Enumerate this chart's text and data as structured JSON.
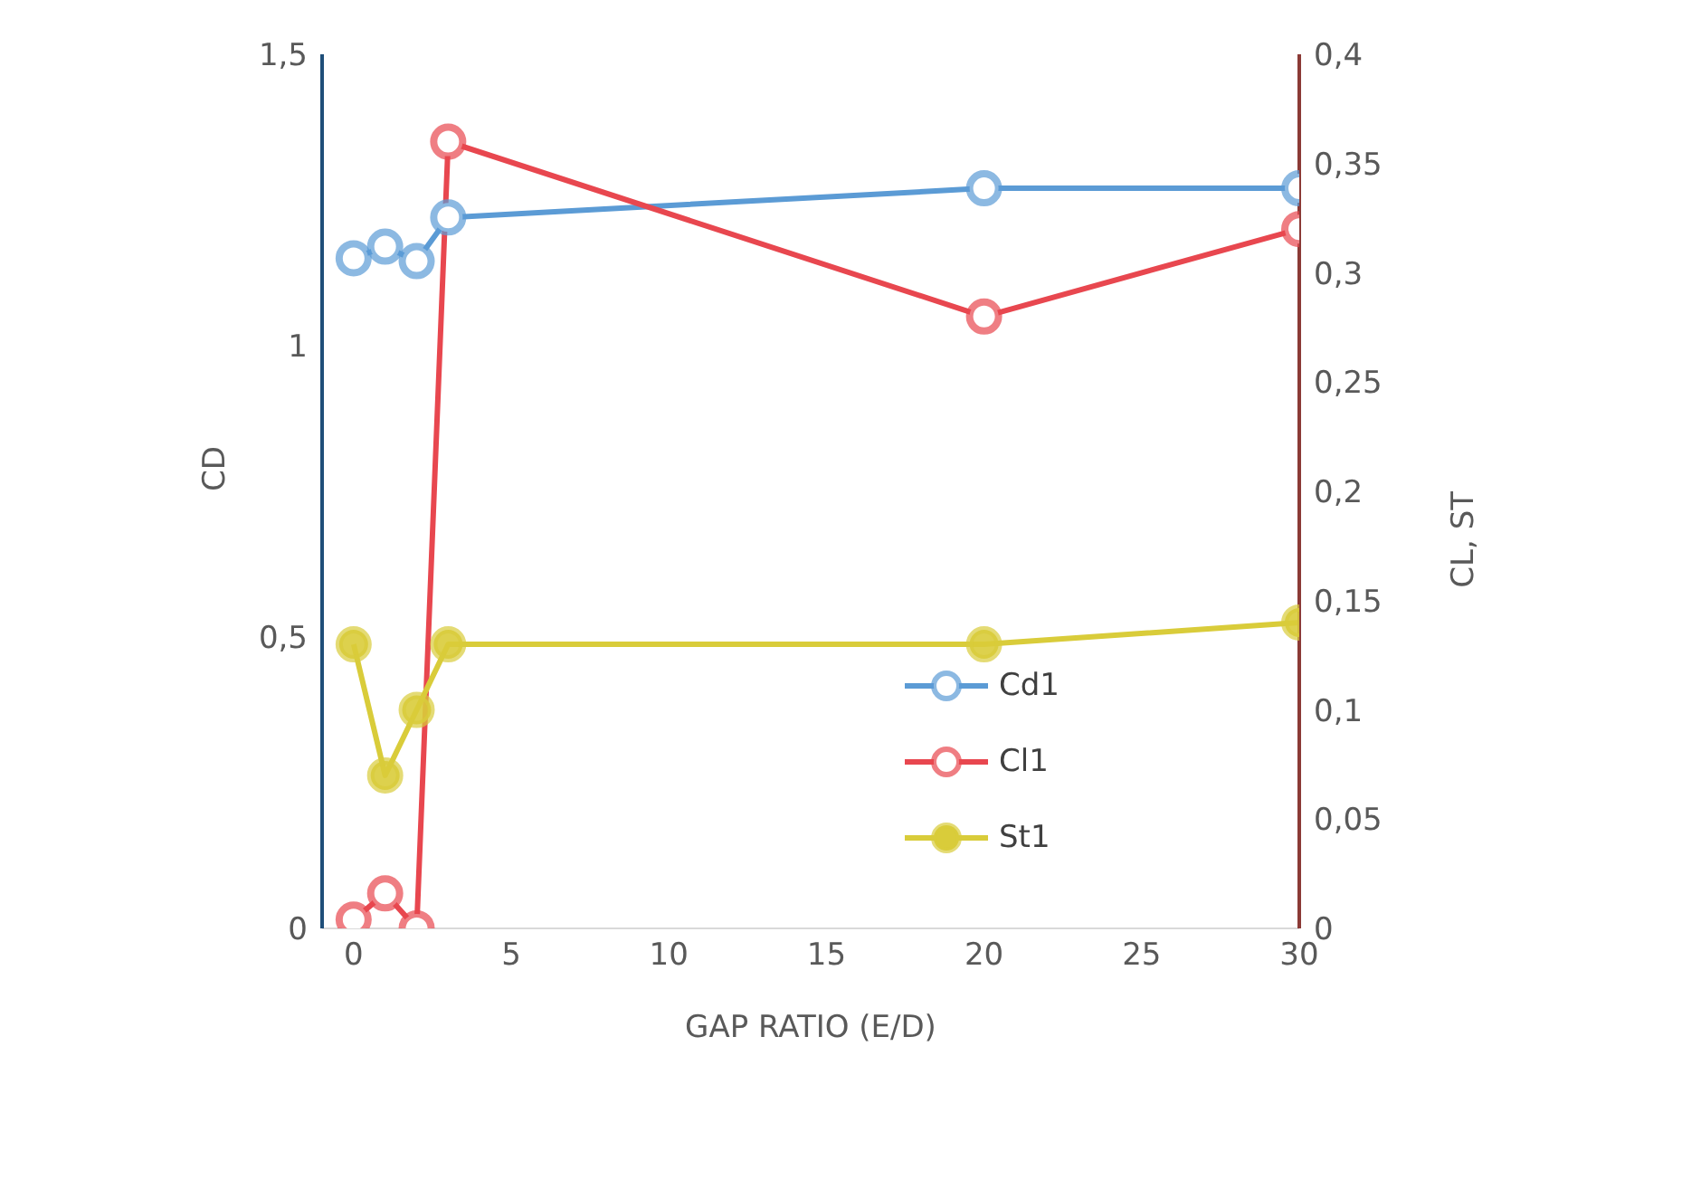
{
  "chart_data": {
    "type": "line",
    "xlabel": "GAP RATIO (E/D)",
    "ylabel": "CD",
    "y2label": "CL, ST",
    "x": [
      0,
      1,
      2,
      3,
      20,
      30
    ],
    "series": [
      {
        "name": "Cd1",
        "color": "#5b9bd5",
        "values": [
          1.15,
          1.17,
          1.145,
          1.22,
          1.27,
          1.27
        ]
      },
      {
        "name": "Cl1",
        "color": "#e8474f",
        "axis": "y2",
        "values": [
          0.004,
          0.016,
          0,
          0.36,
          0.28,
          0.32
        ]
      },
      {
        "name": "St1",
        "color": "#d9cc3a",
        "axis": "y2",
        "values": [
          0.13,
          0.07,
          0.1,
          0.13,
          0.13,
          0.14
        ]
      }
    ],
    "xlim": [
      -1,
      30
    ],
    "xticks": [
      0,
      5,
      10,
      15,
      20,
      25,
      30
    ],
    "ylim": [
      0,
      1.5
    ],
    "yticks": [
      0,
      {
        "value": 0.5,
        "label": "0,5"
      },
      1,
      {
        "value": 1.5,
        "label": "1,5"
      }
    ],
    "y2lim": [
      0,
      0.4
    ],
    "y2ticks": [
      0,
      {
        "value": 0.05,
        "label": "0,05"
      },
      {
        "value": 0.1,
        "label": "0,1"
      },
      {
        "value": 0.15,
        "label": "0,15"
      },
      {
        "value": 0.2,
        "label": "0,2"
      },
      {
        "value": 0.25,
        "label": "0,25"
      },
      {
        "value": 0.3,
        "label": "0,3"
      },
      {
        "value": 0.35,
        "label": "0,35"
      },
      {
        "value": 0.4,
        "label": "0,4"
      }
    ],
    "grid": false,
    "legend": "bottom right",
    "marker": "circle",
    "line_style": "solid"
  }
}
